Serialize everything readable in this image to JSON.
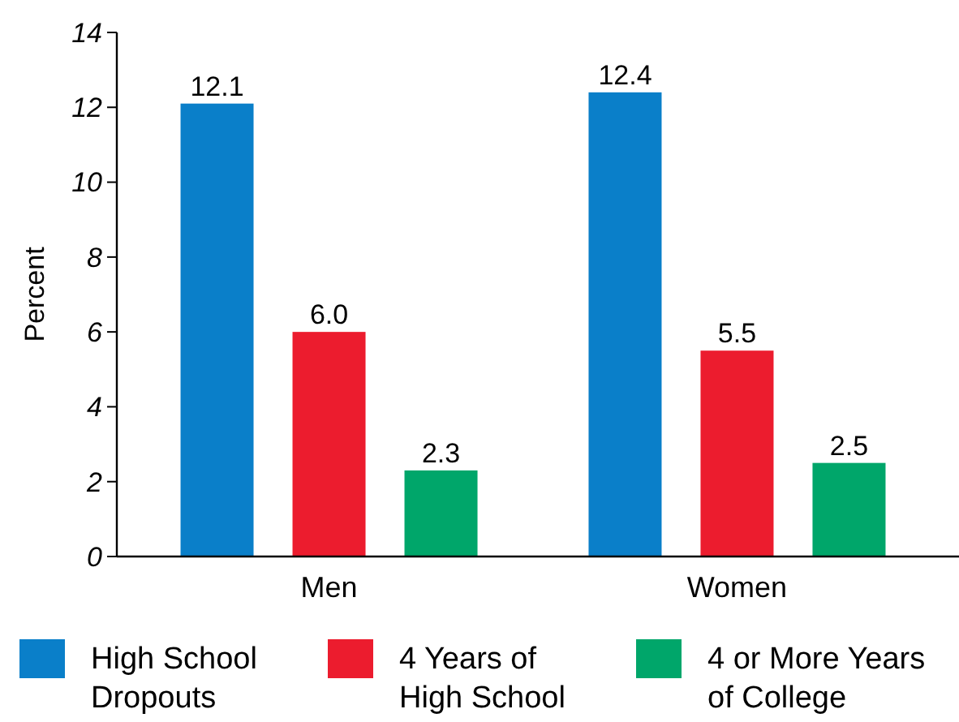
{
  "chart_data": {
    "type": "bar",
    "ylabel": "Percent",
    "categories": [
      "Men",
      "Women"
    ],
    "series": [
      {
        "name": "High School Dropouts",
        "color": "#0a7fc9",
        "values": [
          12.1,
          12.4
        ]
      },
      {
        "name": "4 Years of High School",
        "color": "#ec1c2e",
        "values": [
          6.0,
          5.5
        ]
      },
      {
        "name": "4 or More Years of College",
        "color": "#00a66a",
        "values": [
          2.3,
          2.5
        ]
      }
    ],
    "value_labels": [
      [
        "12.1",
        "12.4"
      ],
      [
        "6.0",
        "5.5"
      ],
      [
        "2.3",
        "2.5"
      ]
    ],
    "ylim": [
      0,
      14
    ],
    "yticks": [
      0,
      2,
      4,
      6,
      8,
      10,
      12,
      14
    ],
    "grid": false,
    "legend": "bottom"
  }
}
